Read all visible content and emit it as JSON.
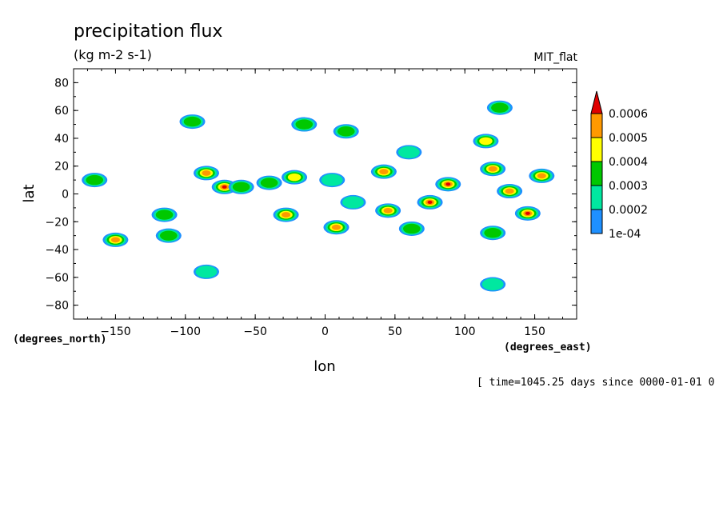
{
  "chart_data": {
    "type": "heatmap",
    "title": "precipitation flux",
    "units": "(kg m-2 s-1)",
    "source_label": "MIT_flat",
    "xlabel": "lon",
    "ylabel": "lat",
    "x_unit": "(degrees_east)",
    "y_unit": "(degrees_north)",
    "time_label": "[ time=1045.25 days since 0000-01-01 0",
    "xlim": [
      -180,
      180
    ],
    "ylim": [
      -90,
      90
    ],
    "x_ticks": [
      -150,
      -100,
      -50,
      0,
      50,
      100,
      150
    ],
    "y_ticks": [
      -80,
      -60,
      -40,
      -20,
      0,
      20,
      40,
      60,
      80
    ],
    "legend": {
      "labels": [
        "1e-04",
        "0.0002",
        "0.0003",
        "0.0004",
        "0.0005",
        "0.0006"
      ],
      "colors": [
        "#1e90ff",
        "#00e8a0",
        "#00c800",
        "#ffff00",
        "#ff9900",
        "#e00000"
      ]
    },
    "cells": [
      {
        "lon": -165,
        "lat": 10,
        "level": 2
      },
      {
        "lon": -150,
        "lat": -33,
        "level": 4
      },
      {
        "lon": -115,
        "lat": -15,
        "level": 2
      },
      {
        "lon": -112,
        "lat": -30,
        "level": 2
      },
      {
        "lon": -95,
        "lat": 52,
        "level": 2
      },
      {
        "lon": -85,
        "lat": 15,
        "level": 4
      },
      {
        "lon": -72,
        "lat": 5,
        "level": 5
      },
      {
        "lon": -60,
        "lat": 5,
        "level": 2
      },
      {
        "lon": -40,
        "lat": 8,
        "level": 2
      },
      {
        "lon": -28,
        "lat": -15,
        "level": 4
      },
      {
        "lon": -22,
        "lat": 12,
        "level": 3
      },
      {
        "lon": -15,
        "lat": 50,
        "level": 2
      },
      {
        "lon": 5,
        "lat": 10,
        "level": 1
      },
      {
        "lon": 8,
        "lat": -24,
        "level": 4
      },
      {
        "lon": 15,
        "lat": 45,
        "level": 2
      },
      {
        "lon": 20,
        "lat": -6,
        "level": 1
      },
      {
        "lon": 42,
        "lat": 16,
        "level": 4
      },
      {
        "lon": 45,
        "lat": -12,
        "level": 4
      },
      {
        "lon": 60,
        "lat": 30,
        "level": 1
      },
      {
        "lon": 62,
        "lat": -25,
        "level": 2
      },
      {
        "lon": 75,
        "lat": -6,
        "level": 5
      },
      {
        "lon": 88,
        "lat": 7,
        "level": 5
      },
      {
        "lon": 115,
        "lat": 38,
        "level": 3
      },
      {
        "lon": 120,
        "lat": 18,
        "level": 4
      },
      {
        "lon": 125,
        "lat": 62,
        "level": 2
      },
      {
        "lon": 132,
        "lat": 2,
        "level": 4
      },
      {
        "lon": 145,
        "lat": -14,
        "level": 5
      },
      {
        "lon": 155,
        "lat": 13,
        "level": 4
      },
      {
        "lon": 120,
        "lat": -65,
        "level": 1
      },
      {
        "lon": -85,
        "lat": -56,
        "level": 1
      },
      {
        "lon": 120,
        "lat": -28,
        "level": 2
      }
    ]
  }
}
